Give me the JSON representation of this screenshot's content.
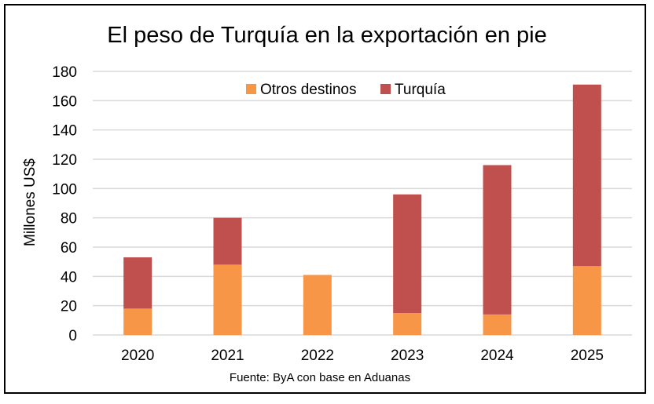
{
  "chart_data": {
    "type": "bar",
    "stacked": true,
    "title": "El peso de Turquía en la exportación en pie",
    "ylabel": "Millones US$",
    "xlabel": "",
    "categories": [
      "2020",
      "2021",
      "2022",
      "2023",
      "2024",
      "2025"
    ],
    "series": [
      {
        "name": "Otros destinos",
        "color": "#f79646",
        "values": [
          18,
          48,
          41,
          15,
          14,
          47
        ]
      },
      {
        "name": "Turquía",
        "color": "#c0504d",
        "values": [
          35,
          32,
          0,
          81,
          102,
          124
        ]
      }
    ],
    "ylim": [
      0,
      180
    ],
    "yticks": [
      "0",
      "20",
      "40",
      "60",
      "80",
      "100",
      "120",
      "140",
      "160",
      "180"
    ],
    "grid": true,
    "legend_position": "top",
    "source": "Fuente: ByA con base en Aduanas"
  }
}
